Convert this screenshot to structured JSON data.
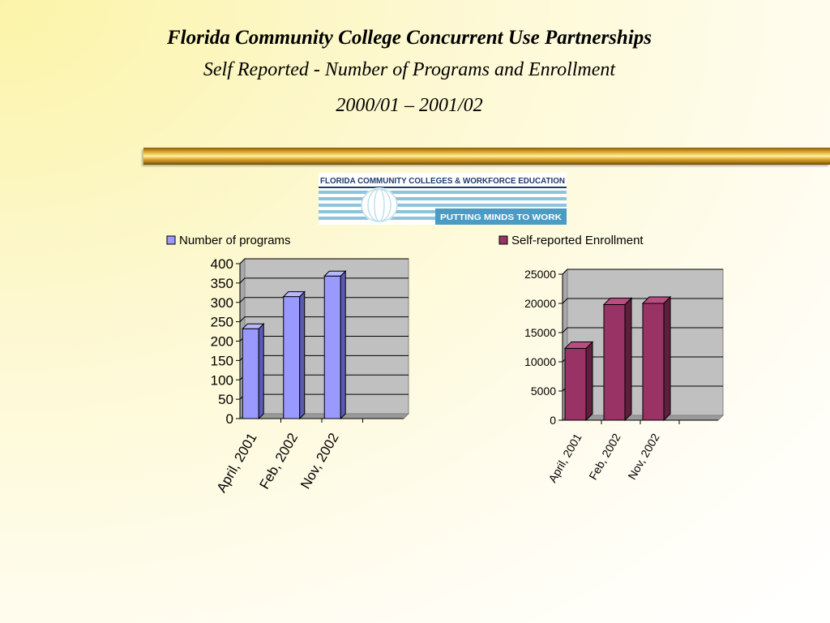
{
  "slide": {
    "title": "Florida Community College Concurrent Use Partnerships",
    "subtitle": "Self Reported - Number of Programs and Enrollment",
    "years": "2000/01 – 2001/02"
  },
  "logo": {
    "top_text": "FLORIDA COMMUNITY COLLEGES & WORKFORCE EDUCATION",
    "tagline": "PUTTING MINDS TO WORK"
  },
  "colors": {
    "programs_bar": "#9999ff",
    "programs_side": "#5b5bb4",
    "programs_top": "#b8b8ff",
    "enrollment_bar": "#993366",
    "enrollment_side": "#5e1f3d",
    "enrollment_top": "#b84d7f",
    "plot_bg": "#c0c0c0",
    "gold": "#d4a22c",
    "logo_blue": "#4a9cc4"
  },
  "chart_data": [
    {
      "type": "bar",
      "categories": [
        "April, 2001",
        "Feb, 2002",
        "Nov, 2002"
      ],
      "series": [
        {
          "name": "Number of programs",
          "values": [
            232,
            315,
            368
          ]
        }
      ],
      "ylim": [
        0,
        400
      ],
      "yticks": [
        "0",
        "50",
        "100",
        "150",
        "200",
        "250",
        "300",
        "350",
        "400"
      ],
      "grid": true,
      "legend": "top",
      "style": "3d-column"
    },
    {
      "type": "bar",
      "categories": [
        "April, 2001",
        "Feb, 2002",
        "Nov, 2002"
      ],
      "series": [
        {
          "name": "Self-reported Enrollment",
          "values": [
            12300,
            19800,
            20000
          ]
        }
      ],
      "ylim": [
        0,
        25000
      ],
      "yticks": [
        "0",
        "5000",
        "10000",
        "15000",
        "20000",
        "25000"
      ],
      "grid": true,
      "legend": "top",
      "style": "3d-column"
    }
  ]
}
